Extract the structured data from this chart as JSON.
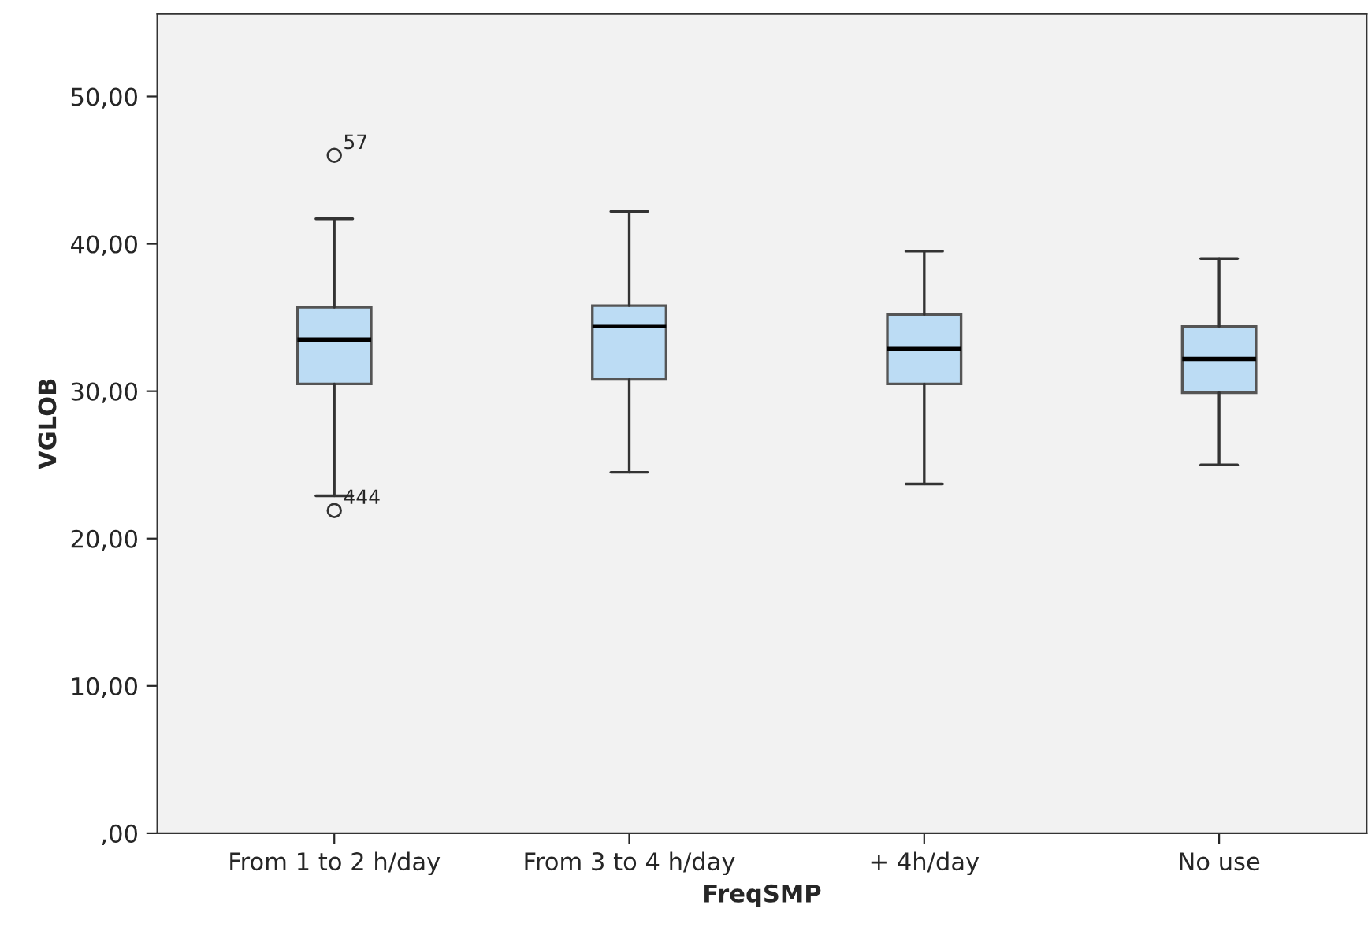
{
  "chart_data": {
    "type": "box",
    "xlabel": "FreqSMP",
    "ylabel": "VGLOB",
    "categories": [
      "From 1 to 2 h/day",
      "From 3 to 4 h/day",
      "+ 4h/day",
      "No use"
    ],
    "color": "#bcdcf4",
    "boxes": [
      {
        "low": 22.9,
        "q1": 30.5,
        "median": 33.5,
        "q3": 35.7,
        "high": 41.7,
        "outliers": [
          46.0,
          21.9
        ]
      },
      {
        "low": 24.5,
        "q1": 30.8,
        "median": 34.4,
        "q3": 35.8,
        "high": 42.2
      },
      {
        "low": 23.7,
        "q1": 30.5,
        "median": 32.9,
        "q3": 35.2,
        "high": 39.5
      },
      {
        "low": 25.0,
        "q1": 29.9,
        "median": 32.2,
        "q3": 34.4,
        "high": 39.0
      }
    ],
    "annotations": [
      "57",
      "444"
    ],
    "ylim": [
      0,
      55.6
    ],
    "yticks": [
      {
        "value": 0,
        "label": ",00"
      },
      {
        "value": 10,
        "label": "10,00"
      },
      {
        "value": 20,
        "label": "20,00"
      },
      {
        "value": 30,
        "label": "30,00"
      },
      {
        "value": 40,
        "label": "40,00"
      },
      {
        "value": 50,
        "label": "50,00"
      }
    ],
    "grid": false,
    "legend": false
  }
}
